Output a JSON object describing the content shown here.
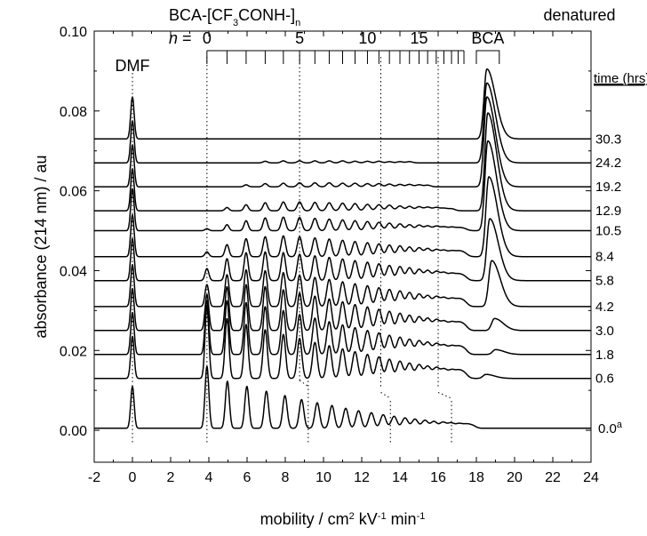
{
  "chart_data": {
    "type": "line",
    "xlabel": {
      "prefix": "mobility / cm",
      "sup1": "2",
      "mid": " kV",
      "sup2": "-1",
      "suffix": " min",
      "sup3": "-1"
    },
    "ylabel": "absorbance (214 nm) / au",
    "xlim": [
      -2,
      24
    ],
    "ylim": [
      -0.008,
      0.1
    ],
    "x_ticks": [
      -2,
      0,
      2,
      4,
      6,
      8,
      10,
      12,
      14,
      16,
      18,
      20,
      22,
      24
    ],
    "x_tick_labels": [
      "-2",
      "0",
      "2",
      "4",
      "6",
      "8",
      "10",
      "12",
      "14",
      "16",
      "18",
      "20",
      "22",
      "24"
    ],
    "y_ticks": [
      0.0,
      0.02,
      0.04,
      0.06,
      0.08,
      0.1
    ],
    "y_tick_labels": [
      "0.00",
      "0.02",
      "0.04",
      "0.06",
      "0.08",
      "0.10"
    ],
    "annotations": {
      "dmf": "DMF",
      "series_title": {
        "a": "BCA-[CF",
        "sub1": "3",
        "b": "CONH-]",
        "sub2": "n"
      },
      "n_label": "n",
      "n_eq": " = ",
      "ladder_numbers": [
        {
          "n": 0,
          "text": "0"
        },
        {
          "n": 5,
          "text": "5"
        },
        {
          "n": 10,
          "text": "10"
        },
        {
          "n": 15,
          "text": "15"
        }
      ],
      "denatured_line1": "denatured",
      "denatured_line2": "BCA",
      "time_header": "time (hrs)",
      "footnote_mark": "a"
    },
    "ladder": {
      "positions": [
        3.9,
        4.95,
        5.95,
        6.95,
        7.9,
        8.75,
        9.55,
        10.3,
        11.0,
        11.65,
        12.3,
        12.9,
        13.45,
        14.0,
        14.5,
        15.0,
        15.45,
        15.9,
        16.3,
        16.7,
        17.05,
        17.35
      ],
      "denatured_bracket": [
        18.0,
        19.2
      ]
    },
    "guides": [
      {
        "x": 0.0,
        "from_y": -0.003,
        "to_y": 0.09
      },
      {
        "x": 3.9,
        "from_y": -0.003,
        "to_y": 0.094
      },
      {
        "x": 8.75,
        "from_y": 0.0125,
        "to_y": 0.094
      },
      {
        "x": 9.2,
        "from_y": -0.003,
        "to_y": 0.0125
      },
      {
        "x": 13.0,
        "from_y": 0.011,
        "to_y": 0.094
      },
      {
        "x": 13.5,
        "from_y": -0.003,
        "to_y": 0.008
      },
      {
        "x": 16.0,
        "from_y": 0.011,
        "to_y": 0.094
      },
      {
        "x": 16.7,
        "from_y": -0.003,
        "to_y": 0.008
      }
    ],
    "series": [
      {
        "name": "30.3",
        "baseline": 0.073,
        "dmf_height": 0.0105,
        "bca_height": 0.0175,
        "bca_pos": 18.55,
        "ladder_heights": [
          0,
          0,
          0,
          0,
          0,
          0,
          0,
          0,
          0,
          0,
          0,
          0,
          0,
          0,
          0,
          0,
          0,
          0,
          0,
          0,
          0,
          0
        ],
        "ladder_offset": 0
      },
      {
        "name": "24.2",
        "baseline": 0.067,
        "dmf_height": 0.0105,
        "bca_height": 0.02,
        "bca_pos": 18.55,
        "ladder_heights": [
          0,
          0,
          0,
          0.0004,
          0.0005,
          0.0005,
          0.0005,
          0.0005,
          0.0005,
          0.0004,
          0.0004,
          0.0004,
          0.0003,
          0.0003,
          0.0003,
          0,
          0,
          0,
          0,
          0,
          0,
          0
        ],
        "ladder_offset": 0
      },
      {
        "name": "19.2",
        "baseline": 0.061,
        "dmf_height": 0.0105,
        "bca_height": 0.0225,
        "bca_pos": 18.55,
        "ladder_heights": [
          0,
          0,
          0.0005,
          0.0008,
          0.0009,
          0.001,
          0.001,
          0.001,
          0.0009,
          0.0009,
          0.0008,
          0.0008,
          0.0007,
          0.0006,
          0.0006,
          0.0005,
          0.0004,
          0,
          0,
          0,
          0,
          0
        ],
        "ladder_offset": 0
      },
      {
        "name": "12.9",
        "baseline": 0.055,
        "dmf_height": 0.0105,
        "bca_height": 0.0245,
        "bca_pos": 18.6,
        "ladder_heights": [
          0,
          0.0008,
          0.0015,
          0.002,
          0.0022,
          0.0022,
          0.0021,
          0.002,
          0.0019,
          0.0018,
          0.0016,
          0.0015,
          0.0014,
          0.0012,
          0.0011,
          0.001,
          0.0009,
          0.0008,
          0.0006,
          0.0005,
          0,
          0
        ],
        "ladder_offset": 0
      },
      {
        "name": "10.5",
        "baseline": 0.05,
        "dmf_height": 0.0105,
        "bca_height": 0.0225,
        "bca_pos": 18.6,
        "ladder_heights": [
          0.0005,
          0.0015,
          0.0025,
          0.0032,
          0.0034,
          0.0033,
          0.0031,
          0.0029,
          0.0027,
          0.0025,
          0.0023,
          0.0021,
          0.0019,
          0.0017,
          0.0015,
          0.0014,
          0.0012,
          0.0011,
          0.0009,
          0.0008,
          0.0006,
          0.0005
        ],
        "ladder_offset": 0
      },
      {
        "name": "8.4",
        "baseline": 0.0435,
        "dmf_height": 0.0105,
        "bca_height": 0.02,
        "bca_pos": 18.65,
        "ladder_heights": [
          0.0012,
          0.003,
          0.0045,
          0.005,
          0.0052,
          0.005,
          0.0047,
          0.0044,
          0.0041,
          0.0038,
          0.0035,
          0.0032,
          0.0029,
          0.0027,
          0.0024,
          0.0022,
          0.002,
          0.0017,
          0.0015,
          0.0013,
          0.0011,
          0.0009
        ],
        "ladder_offset": 0
      },
      {
        "name": "5.8",
        "baseline": 0.0375,
        "dmf_height": 0.0105,
        "bca_height": 0.0155,
        "bca_pos": 18.7,
        "ladder_heights": [
          0.003,
          0.0055,
          0.007,
          0.0072,
          0.007,
          0.0066,
          0.0062,
          0.0058,
          0.0054,
          0.005,
          0.0046,
          0.0042,
          0.0038,
          0.0035,
          0.0032,
          0.0028,
          0.0025,
          0.0022,
          0.0019,
          0.0016,
          0.0013,
          0.001
        ],
        "ladder_offset": 0
      },
      {
        "name": "4.2",
        "baseline": 0.031,
        "dmf_height": 0.0105,
        "bca_height": 0.0115,
        "bca_pos": 18.8,
        "ladder_heights": [
          0.0055,
          0.008,
          0.0092,
          0.009,
          0.0085,
          0.0079,
          0.0073,
          0.0068,
          0.0062,
          0.0057,
          0.0052,
          0.0047,
          0.0043,
          0.0039,
          0.0035,
          0.0031,
          0.0027,
          0.0024,
          0.0021,
          0.0018,
          0.0015,
          0.0012
        ],
        "ladder_offset": 0
      },
      {
        "name": "3.0",
        "baseline": 0.025,
        "dmf_height": 0.0105,
        "bca_height": 0.003,
        "bca_pos": 18.95,
        "ladder_heights": [
          0.009,
          0.011,
          0.0115,
          0.011,
          0.0102,
          0.0094,
          0.0086,
          0.0079,
          0.0072,
          0.0065,
          0.0059,
          0.0053,
          0.0048,
          0.0043,
          0.0038,
          0.0034,
          0.003,
          0.0026,
          0.0022,
          0.0019,
          0.0016,
          0.0013
        ],
        "ladder_offset": 0
      },
      {
        "name": "1.8",
        "baseline": 0.019,
        "dmf_height": 0.0105,
        "bca_height": 0.0012,
        "bca_pos": 19.0,
        "ladder_heights": [
          0.0135,
          0.0135,
          0.013,
          0.012,
          0.011,
          0.01,
          0.0091,
          0.0082,
          0.0074,
          0.0067,
          0.006,
          0.0054,
          0.0048,
          0.0043,
          0.0038,
          0.0034,
          0.003,
          0.0026,
          0.0022,
          0.0019,
          0.0016,
          0.0013
        ],
        "ladder_offset": 0
      },
      {
        "name": "0.6",
        "baseline": 0.013,
        "dmf_height": 0.0105,
        "bca_height": 0.001,
        "bca_pos": 18.5,
        "ladder_heights": [
          0.018,
          0.015,
          0.0135,
          0.0122,
          0.011,
          0.01,
          0.009,
          0.0082,
          0.0074,
          0.0067,
          0.006,
          0.0054,
          0.0048,
          0.0043,
          0.0038,
          0.0034,
          0.003,
          0.0026,
          0.0022,
          0.0019,
          0.0016,
          0.0013
        ],
        "ladder_offset": 0
      },
      {
        "name": "0.0",
        "baseline": 0.0005,
        "dmf_height": 0.0105,
        "bca_height": 0.0,
        "bca_pos": 18.5,
        "ladder_heights": [
          0.0155,
          0.0118,
          0.0105,
          0.0093,
          0.0082,
          0.0072,
          0.0064,
          0.0057,
          0.005,
          0.0044,
          0.0039,
          0.0034,
          0.003,
          0.0026,
          0.0023,
          0.002,
          0.0017,
          0.0015,
          0.0013,
          0.0011,
          0.0009,
          0.0007
        ],
        "ladder_offset": 0.45
      }
    ]
  }
}
